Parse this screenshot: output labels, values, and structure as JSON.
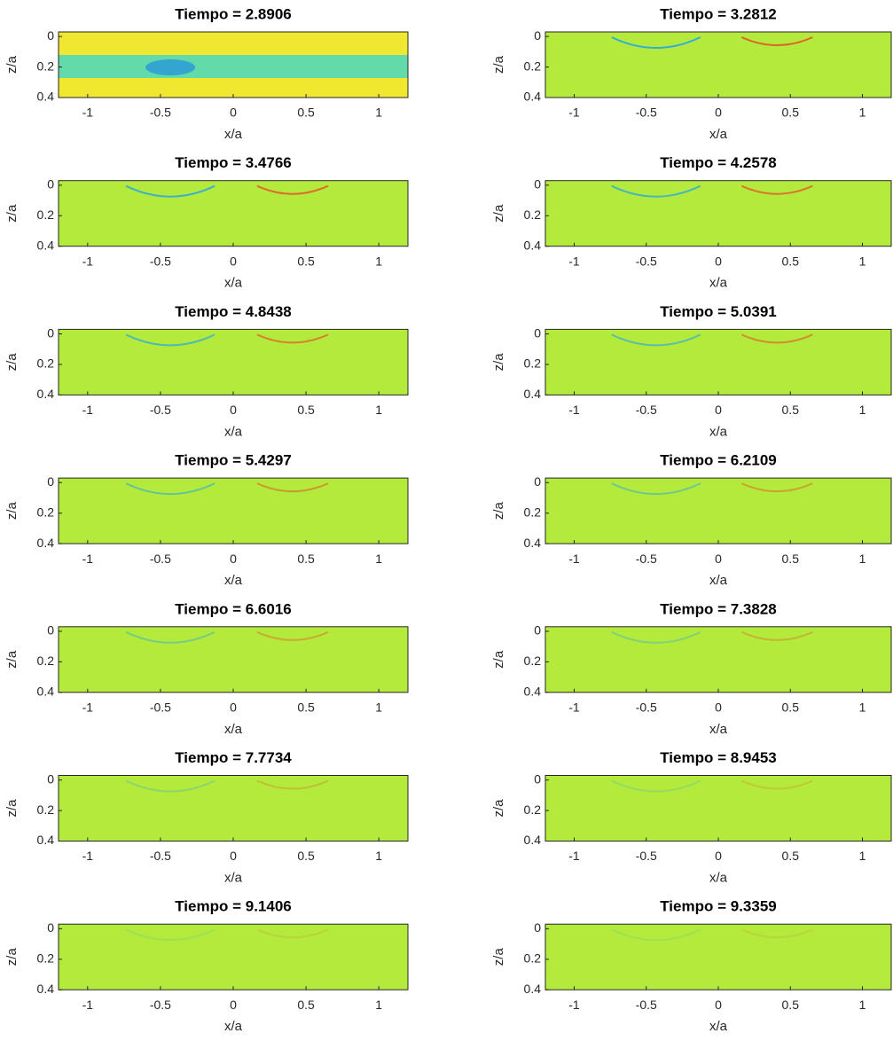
{
  "chart_data": [
    {
      "type": "heatmap",
      "title": "Tiempo = 2.8906",
      "xlabel": "x/a",
      "ylabel": "z/a",
      "xlim": [
        -1.2,
        1.2
      ],
      "ylim": [
        -0.03,
        0.4
      ],
      "xticks": [
        -1,
        -0.5,
        0,
        0.5,
        1
      ],
      "yticks": [
        0,
        0.2,
        0.4
      ],
      "color": "#f0e830"
    },
    {
      "type": "heatmap",
      "title": "Tiempo = 3.2812",
      "xlabel": "x/a",
      "ylabel": "z/a",
      "xlim": [
        -1.2,
        1.2
      ],
      "ylim": [
        -0.03,
        0.4
      ],
      "xticks": [
        -1,
        -0.5,
        0,
        0.5,
        1
      ],
      "yticks": [
        0,
        0.2,
        0.4
      ],
      "color": "#b4ea3c"
    },
    {
      "type": "heatmap",
      "title": "Tiempo = 3.4766",
      "xlabel": "x/a",
      "ylabel": "z/a",
      "xlim": [
        -1.2,
        1.2
      ],
      "ylim": [
        -0.03,
        0.4
      ],
      "xticks": [
        -1,
        -0.5,
        0,
        0.5,
        1
      ],
      "yticks": [
        0,
        0.2,
        0.4
      ],
      "color": "#b4ea3c"
    },
    {
      "type": "heatmap",
      "title": "Tiempo = 4.2578",
      "xlabel": "x/a",
      "ylabel": "z/a",
      "xlim": [
        -1.2,
        1.2
      ],
      "ylim": [
        -0.03,
        0.4
      ],
      "xticks": [
        -1,
        -0.5,
        0,
        0.5,
        1
      ],
      "yticks": [
        0,
        0.2,
        0.4
      ],
      "color": "#b4ea3c"
    },
    {
      "type": "heatmap",
      "title": "Tiempo = 4.8438",
      "xlabel": "x/a",
      "ylabel": "z/a",
      "xlim": [
        -1.2,
        1.2
      ],
      "ylim": [
        -0.03,
        0.4
      ],
      "xticks": [
        -1,
        -0.5,
        0,
        0.5,
        1
      ],
      "yticks": [
        0,
        0.2,
        0.4
      ],
      "color": "#b4ea3c"
    },
    {
      "type": "heatmap",
      "title": "Tiempo = 5.0391",
      "xlabel": "x/a",
      "ylabel": "z/a",
      "xlim": [
        -1.2,
        1.2
      ],
      "ylim": [
        -0.03,
        0.4
      ],
      "xticks": [
        -1,
        -0.5,
        0,
        0.5,
        1
      ],
      "yticks": [
        0,
        0.2,
        0.4
      ],
      "color": "#b4ea3c"
    },
    {
      "type": "heatmap",
      "title": "Tiempo = 5.4297",
      "xlabel": "x/a",
      "ylabel": "z/a",
      "xlim": [
        -1.2,
        1.2
      ],
      "ylim": [
        -0.03,
        0.4
      ],
      "xticks": [
        -1,
        -0.5,
        0,
        0.5,
        1
      ],
      "yticks": [
        0,
        0.2,
        0.4
      ],
      "color": "#b4ea3c"
    },
    {
      "type": "heatmap",
      "title": "Tiempo = 6.2109",
      "xlabel": "x/a",
      "ylabel": "z/a",
      "xlim": [
        -1.2,
        1.2
      ],
      "ylim": [
        -0.03,
        0.4
      ],
      "xticks": [
        -1,
        -0.5,
        0,
        0.5,
        1
      ],
      "yticks": [
        0,
        0.2,
        0.4
      ],
      "color": "#b4ea3c"
    },
    {
      "type": "heatmap",
      "title": "Tiempo = 6.6016",
      "xlabel": "x/a",
      "ylabel": "z/a",
      "xlim": [
        -1.2,
        1.2
      ],
      "ylim": [
        -0.03,
        0.4
      ],
      "xticks": [
        -1,
        -0.5,
        0,
        0.5,
        1
      ],
      "yticks": [
        0,
        0.2,
        0.4
      ],
      "color": "#b4ea3c"
    },
    {
      "type": "heatmap",
      "title": "Tiempo = 7.3828",
      "xlabel": "x/a",
      "ylabel": "z/a",
      "xlim": [
        -1.2,
        1.2
      ],
      "ylim": [
        -0.03,
        0.4
      ],
      "xticks": [
        -1,
        -0.5,
        0,
        0.5,
        1
      ],
      "yticks": [
        0,
        0.2,
        0.4
      ],
      "color": "#b4ea3c"
    },
    {
      "type": "heatmap",
      "title": "Tiempo = 7.7734",
      "xlabel": "x/a",
      "ylabel": "z/a",
      "xlim": [
        -1.2,
        1.2
      ],
      "ylim": [
        -0.03,
        0.4
      ],
      "xticks": [
        -1,
        -0.5,
        0,
        0.5,
        1
      ],
      "yticks": [
        0,
        0.2,
        0.4
      ],
      "color": "#b4ea3c"
    },
    {
      "type": "heatmap",
      "title": "Tiempo = 8.9453",
      "xlabel": "x/a",
      "ylabel": "z/a",
      "xlim": [
        -1.2,
        1.2
      ],
      "ylim": [
        -0.03,
        0.4
      ],
      "xticks": [
        -1,
        -0.5,
        0,
        0.5,
        1
      ],
      "yticks": [
        0,
        0.2,
        0.4
      ],
      "color": "#b4ea3c"
    },
    {
      "type": "heatmap",
      "title": "Tiempo = 9.1406",
      "xlabel": "x/a",
      "ylabel": "z/a",
      "xlim": [
        -1.2,
        1.2
      ],
      "ylim": [
        -0.03,
        0.4
      ],
      "xticks": [
        -1,
        -0.5,
        0,
        0.5,
        1
      ],
      "yticks": [
        0,
        0.2,
        0.4
      ],
      "color": "#b4ea3c"
    },
    {
      "type": "heatmap",
      "title": "Tiempo = 9.3359",
      "xlabel": "x/a",
      "ylabel": "z/a",
      "xlim": [
        -1.2,
        1.2
      ],
      "ylim": [
        -0.03,
        0.4
      ],
      "xticks": [
        -1,
        -0.5,
        0,
        0.5,
        1
      ],
      "yticks": [
        0,
        0.2,
        0.4
      ],
      "color": "#b4ea3c"
    }
  ]
}
